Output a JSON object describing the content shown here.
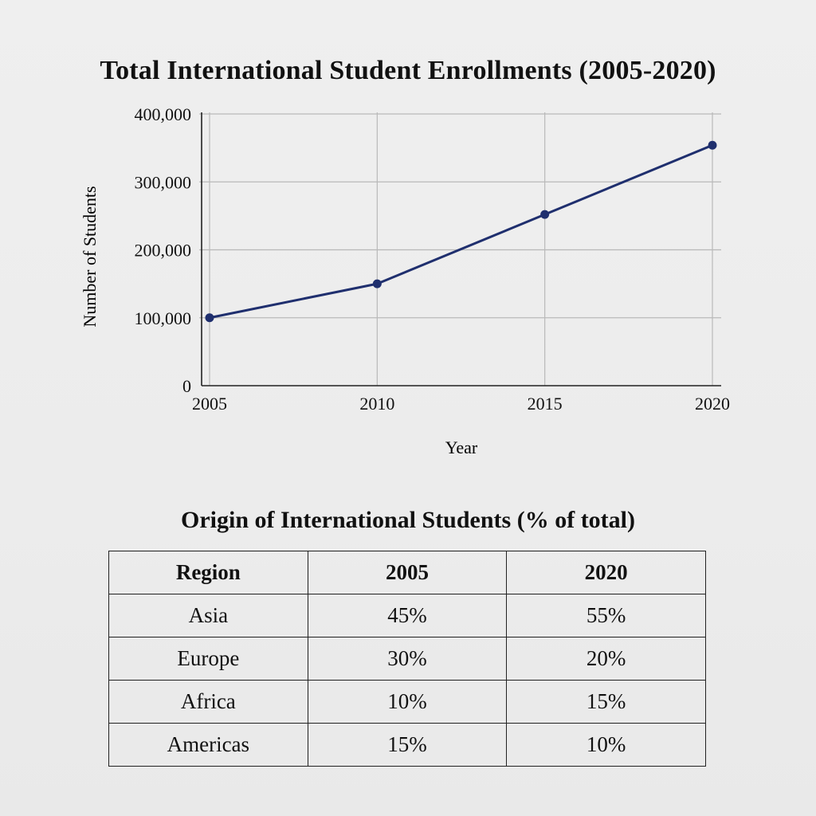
{
  "chart_data": {
    "type": "line",
    "title": "Total International Student Enrollments (2005-2020)",
    "xlabel": "Year",
    "ylabel": "Number of Students",
    "x": [
      2005,
      2010,
      2015,
      2020
    ],
    "series": [
      {
        "values": [
          100000,
          150000,
          252000,
          354000
        ]
      }
    ],
    "xlim": [
      2005,
      2020
    ],
    "ylim": [
      0,
      400000
    ],
    "y_ticks": [
      0,
      100000,
      200000,
      300000,
      400000
    ],
    "y_tick_labels": [
      "0",
      "100,000",
      "200,000",
      "300,000",
      "400,000"
    ],
    "x_tick_labels": [
      "2005",
      "2010",
      "2015",
      "2020"
    ],
    "grid": true,
    "line_color": "#1f2f6e"
  },
  "table": {
    "title": "Origin of International Students (% of total)",
    "headers": [
      "Region",
      "2005",
      "2020"
    ],
    "rows": [
      [
        "Asia",
        "45%",
        "55%"
      ],
      [
        "Europe",
        "30%",
        "20%"
      ],
      [
        "Africa",
        "10%",
        "15%"
      ],
      [
        "Americas",
        "15%",
        "10%"
      ]
    ]
  }
}
